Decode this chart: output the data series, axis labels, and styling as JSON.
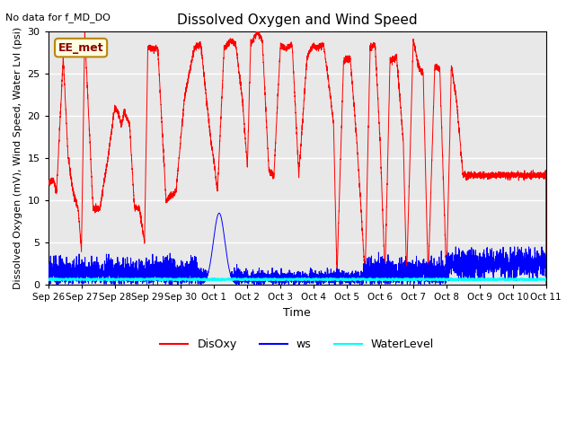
{
  "title": "Dissolved Oxygen and Wind Speed",
  "subtitle": "No data for f_MD_DO",
  "ylabel": "Dissolved Oxygen (mV), Wind Speed, Water Lvl (psi)",
  "xlabel": "Time",
  "annotation": "EE_met",
  "ylim": [
    0,
    30
  ],
  "yticks": [
    0,
    5,
    10,
    15,
    20,
    25,
    30
  ],
  "xtick_labels": [
    "Sep 26",
    "Sep 27",
    "Sep 28",
    "Sep 29",
    "Sep 30",
    "Oct 1",
    "Oct 2",
    "Oct 3",
    "Oct 4",
    "Oct 5",
    "Oct 6",
    "Oct 7",
    "Oct 8",
    "Oct 9",
    "Oct 10",
    "Oct 11"
  ],
  "bg_color": "#e8e8e8",
  "grid_color": "white",
  "disoxy_color": "red",
  "ws_color": "blue",
  "waterlevel_color": "cyan",
  "legend_labels": [
    "DisOxy",
    "ws",
    "WaterLevel"
  ],
  "title_fontsize": 11,
  "ylabel_fontsize": 8,
  "xlabel_fontsize": 9,
  "subtitle_fontsize": 8,
  "annotation_fontsize": 9
}
